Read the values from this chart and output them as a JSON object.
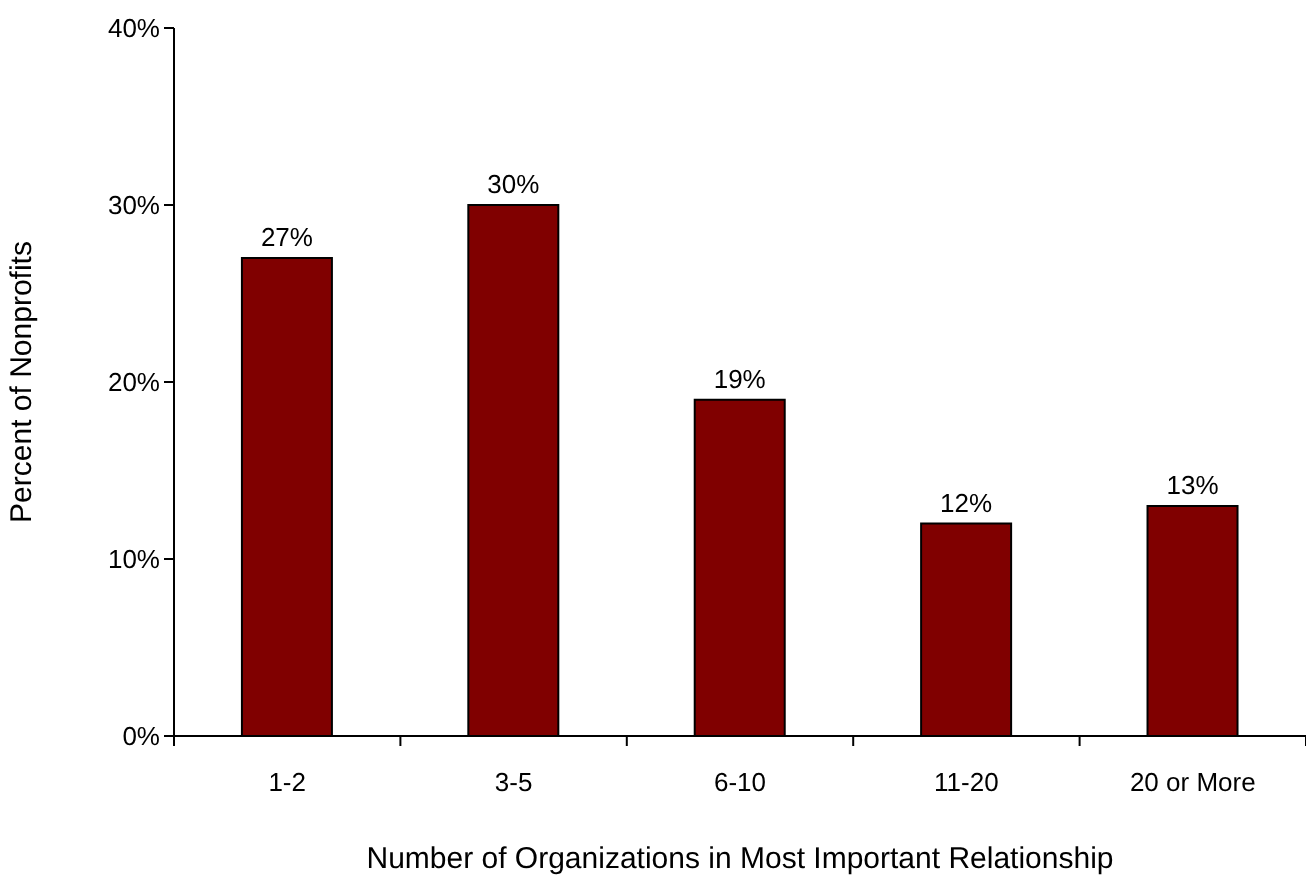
{
  "chart_data": {
    "type": "bar",
    "categories": [
      "1-2",
      "3-5",
      "6-10",
      "11-20",
      "20 or More"
    ],
    "values": [
      27,
      30,
      19,
      12,
      13
    ],
    "value_labels": [
      "27%",
      "30%",
      "19%",
      "12%",
      "13%"
    ],
    "color": "#800000",
    "xlabel": "Number of Organizations in Most Important Relationship",
    "ylabel": "Percent of Nonprofits",
    "ylim": [
      0,
      40
    ],
    "yticks": [
      {
        "value": 0,
        "label": "0%"
      },
      {
        "value": 10,
        "label": "10%"
      },
      {
        "value": 20,
        "label": "20%"
      },
      {
        "value": 30,
        "label": "30%"
      },
      {
        "value": 40,
        "label": "40%"
      }
    ]
  }
}
